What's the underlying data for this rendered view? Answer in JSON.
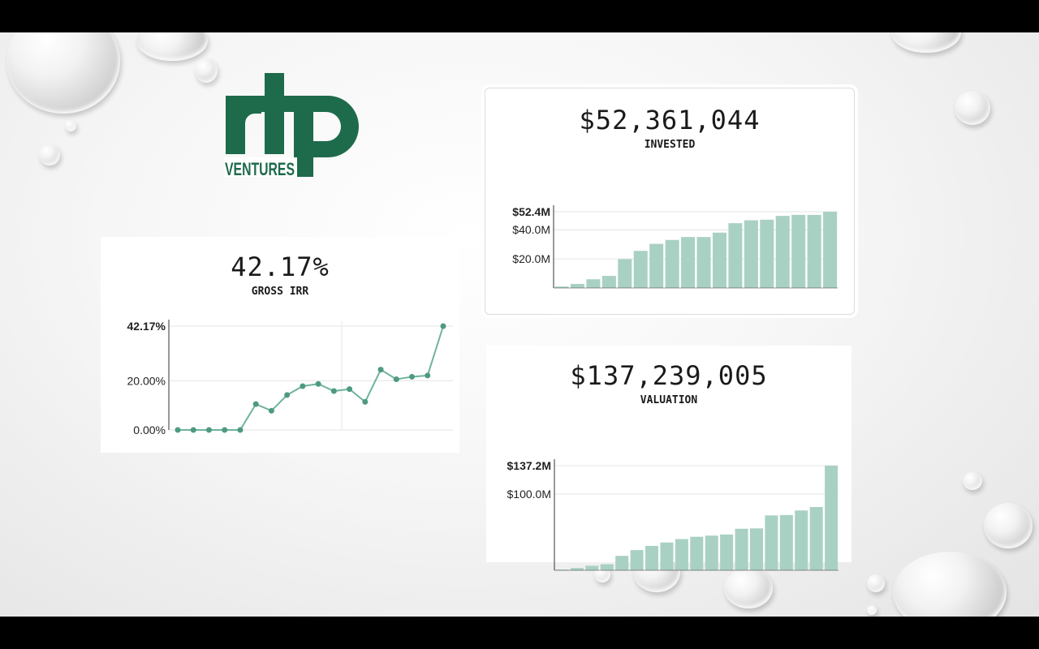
{
  "logo": {
    "top_text": "rtp",
    "bottom_text": "VENTURES",
    "color": "#1e6b4b"
  },
  "colors": {
    "bar": "#a9d1c3",
    "line": "#6fb39b",
    "point": "#4e9a80",
    "grid": "#e4e4e4",
    "axis": "#333333"
  },
  "chart_data": [
    {
      "type": "line",
      "headline": "42.17%",
      "label": "GROSS IRR",
      "x": [
        1,
        2,
        3,
        4,
        5,
        6,
        7,
        8,
        9,
        10,
        11,
        12,
        13,
        14,
        15,
        16,
        17,
        18
      ],
      "values": [
        0,
        0,
        0,
        0,
        0,
        10.5,
        7.8,
        14.2,
        17.8,
        18.7,
        15.8,
        16.6,
        11.4,
        24.5,
        20.6,
        21.6,
        22.1,
        42.17
      ],
      "ylim": [
        0,
        42.17
      ],
      "yticks": [
        "0.00%",
        "20.00%",
        "42.17%"
      ],
      "ytick_values": [
        0,
        20,
        42.17
      ]
    },
    {
      "type": "bar",
      "headline": "$52,361,044",
      "label": "INVESTED",
      "values": [
        1.0,
        2.8,
        6.0,
        8.3,
        19.8,
        25.5,
        30.3,
        33.0,
        35.0,
        35.0,
        38.0,
        44.5,
        46.5,
        46.9,
        49.5,
        50.2,
        50.2,
        52.36
      ],
      "ylim": [
        0,
        52.36
      ],
      "yticks": [
        "$20.0M",
        "$40.0M",
        "$52.4M"
      ],
      "ytick_values": [
        20,
        40,
        52.36
      ]
    },
    {
      "type": "bar",
      "headline": "$137,239,005",
      "label": "VALUATION",
      "values": [
        1.0,
        3.0,
        6.0,
        8.0,
        19.0,
        26.5,
        32.0,
        36.5,
        41.0,
        44.0,
        45.5,
        47.0,
        54.5,
        55.0,
        72.0,
        72.5,
        78.5,
        83.0,
        137.24
      ],
      "ylim": [
        0,
        137.24
      ],
      "yticks": [
        "$100.0M",
        "$137.2M"
      ],
      "ytick_values": [
        100,
        137.24
      ]
    }
  ]
}
